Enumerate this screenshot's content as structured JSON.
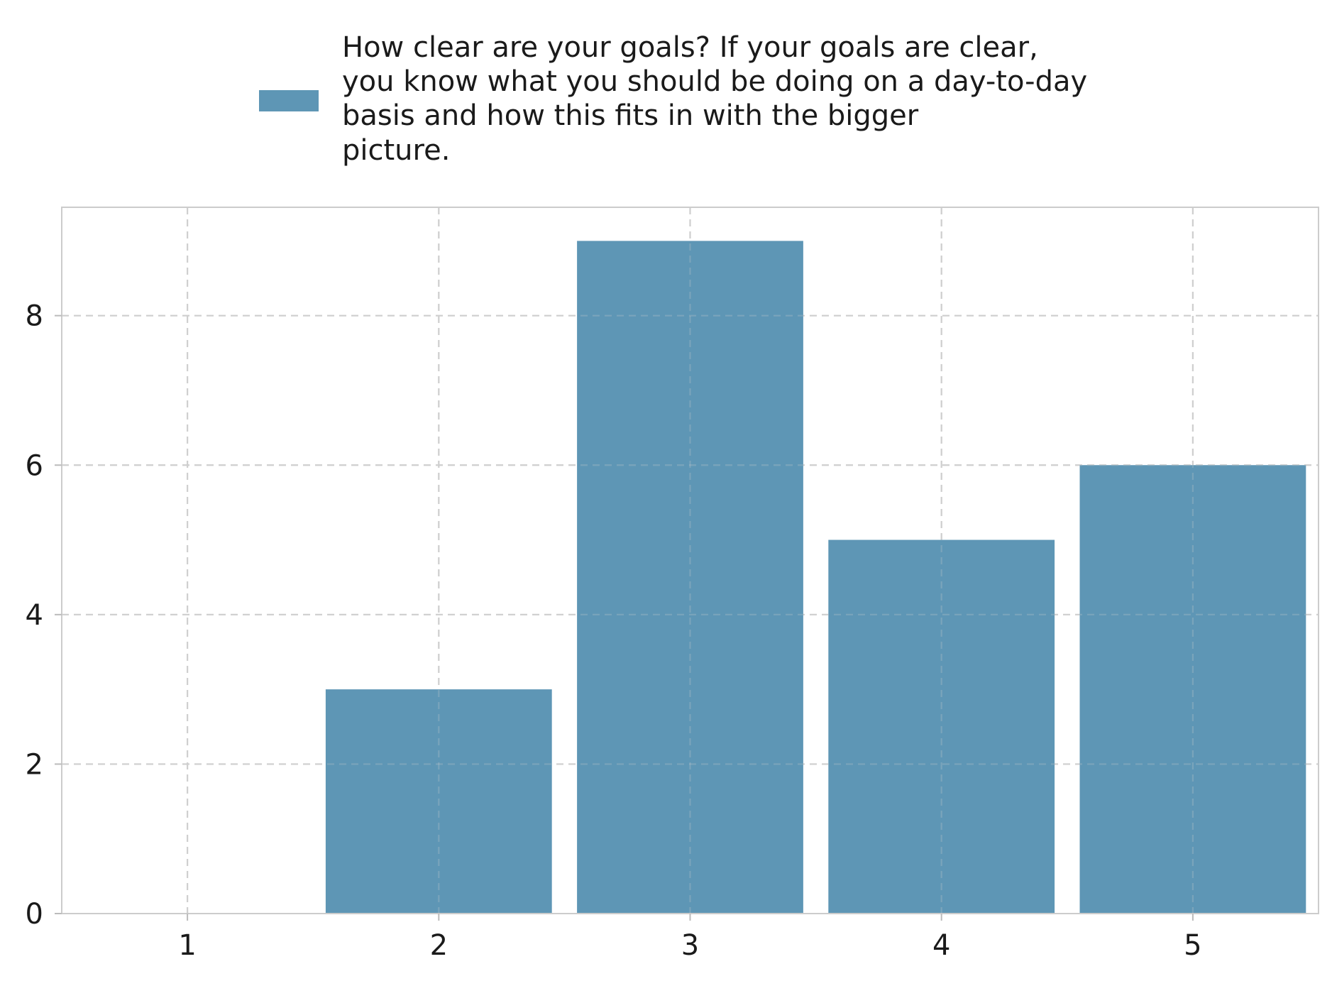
{
  "chart_data": {
    "type": "bar",
    "categories": [
      "1",
      "2",
      "3",
      "4",
      "5"
    ],
    "x": [
      1,
      2,
      3,
      4,
      5
    ],
    "series": [
      {
        "name": "How clear are your goals? If your goals are clear, you know what you should be doing on a day-to-day basis and how this fits in with the bigger picture.",
        "legend_lines": [
          "How clear are your goals? If your goals are clear,",
          "you know what you should be doing on a day-to-day",
          "basis and how this fits in with the bigger",
          "picture."
        ],
        "values": [
          0,
          3,
          9,
          5,
          6
        ],
        "color": "#5e96b5"
      }
    ],
    "title": "",
    "xlabel": "",
    "ylabel": "",
    "xlim": [
      0.5,
      5.5
    ],
    "ylim": [
      0,
      9.45
    ],
    "yticks": [
      0,
      2,
      4,
      6,
      8
    ],
    "yticks_labels": [
      "0",
      "2",
      "4",
      "6",
      "8"
    ],
    "xticks_labels": [
      "1",
      "2",
      "3",
      "4",
      "5"
    ],
    "grid": true,
    "legend_position": "top-center",
    "colors": {
      "bar": "#5e96b5",
      "grid": "#cfcfcf",
      "frame": "#cccccc"
    }
  }
}
